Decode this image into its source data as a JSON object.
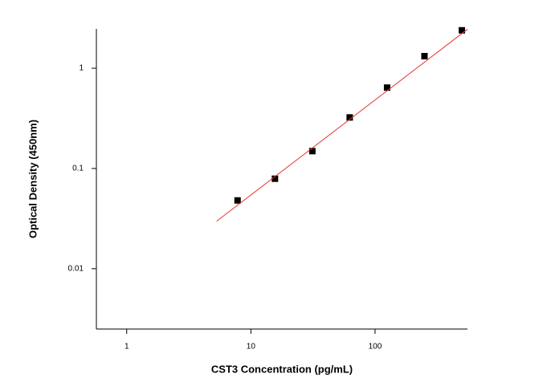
{
  "chart_data": {
    "type": "scatter",
    "xlabel": "CST3 Concentration (pg/mL)",
    "ylabel": "Optical Density (450nm)",
    "xscale": "log",
    "yscale": "log",
    "xlim": [
      0.57,
      555
    ],
    "ylim": [
      0.0025,
      2.47
    ],
    "xticks": [
      1,
      10,
      100
    ],
    "yticks": [
      0.01,
      0.1,
      1
    ],
    "series": [
      {
        "mode": "markers",
        "color": "#000000",
        "x": [
          7.8125,
          15.625,
          31.25,
          62.5,
          125,
          250,
          500
        ],
        "values": [
          0.048,
          0.079,
          0.149,
          0.323,
          0.641,
          1.32,
          2.39
        ]
      },
      {
        "mode": "line",
        "color": "#e8342c",
        "x": [
          5.3,
          555
        ],
        "values": [
          0.0298,
          2.45
        ]
      }
    ]
  }
}
